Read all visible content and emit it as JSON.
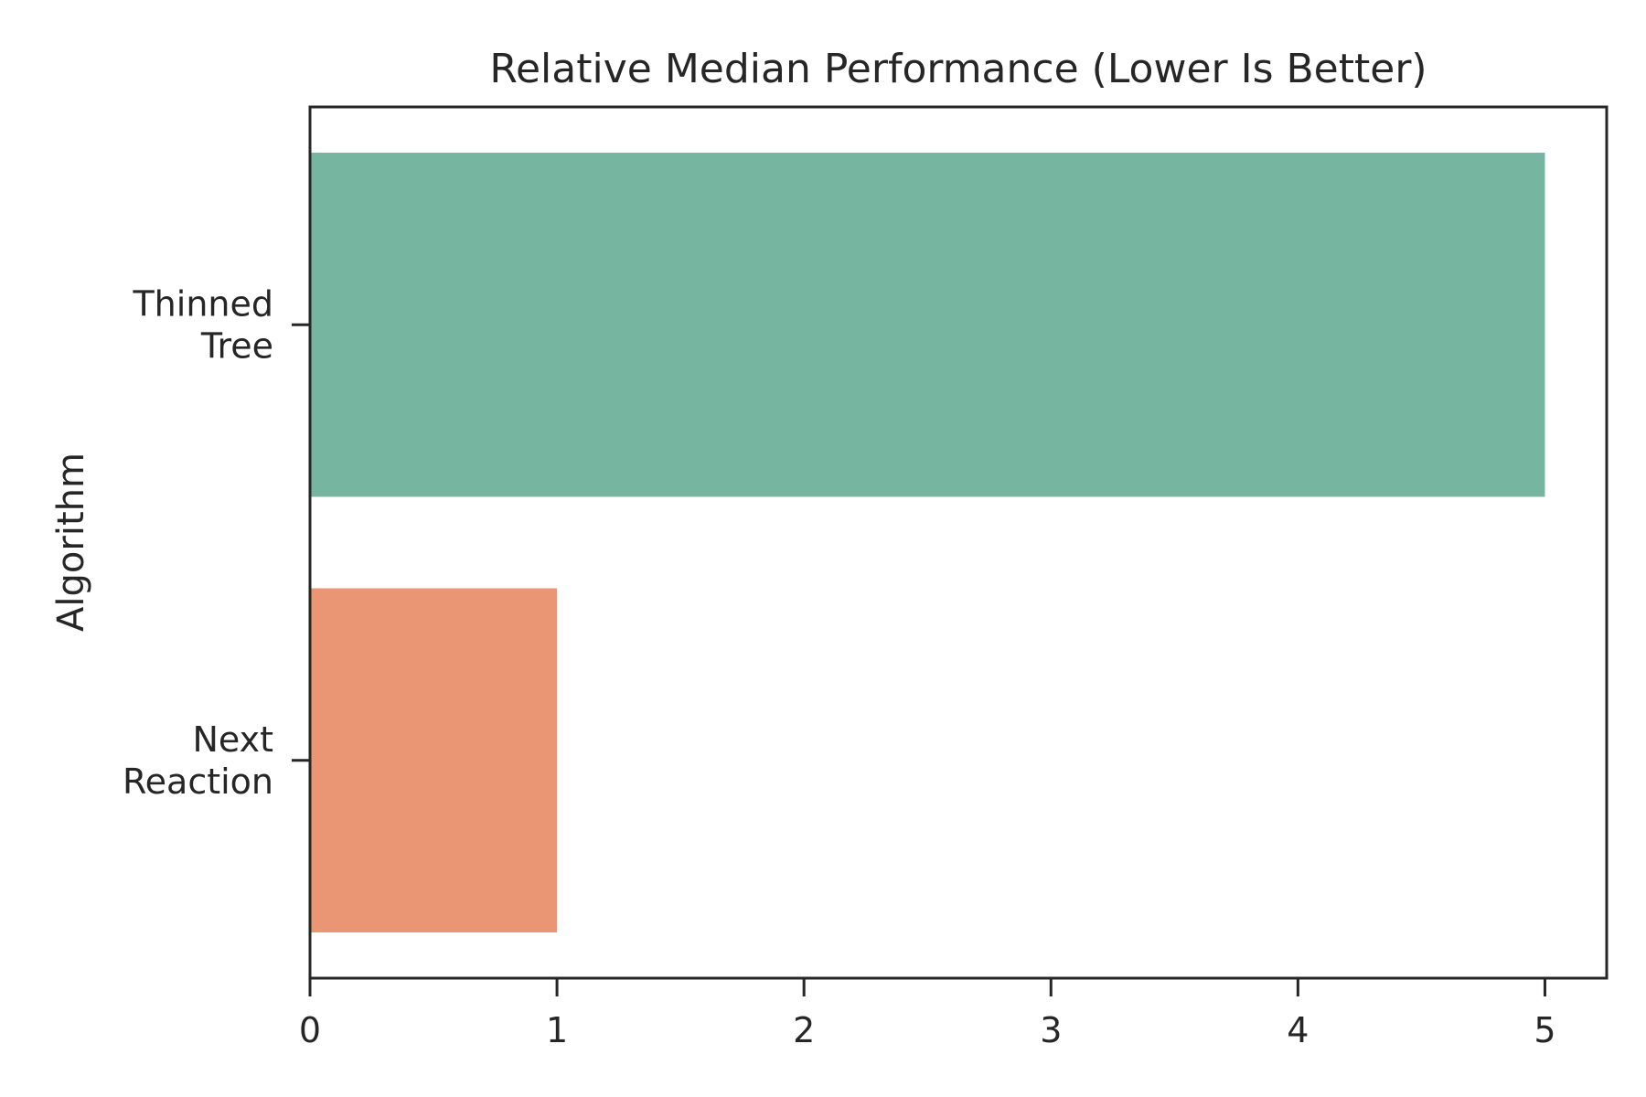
{
  "chart_data": {
    "type": "bar",
    "orientation": "horizontal",
    "title": "Relative Median Performance (Lower Is Better)",
    "xlabel": "",
    "ylabel": "Algorithm",
    "categories": [
      [
        "Thinned",
        "Tree"
      ],
      [
        "Next",
        "Reaction"
      ]
    ],
    "values": [
      5.0,
      1.0
    ],
    "colors": [
      "#76b6a0",
      "#ea9675"
    ],
    "xlim": [
      0,
      5.25
    ],
    "xticks": [
      0,
      1,
      2,
      3,
      4,
      5
    ],
    "grid": false,
    "legend": "none"
  }
}
